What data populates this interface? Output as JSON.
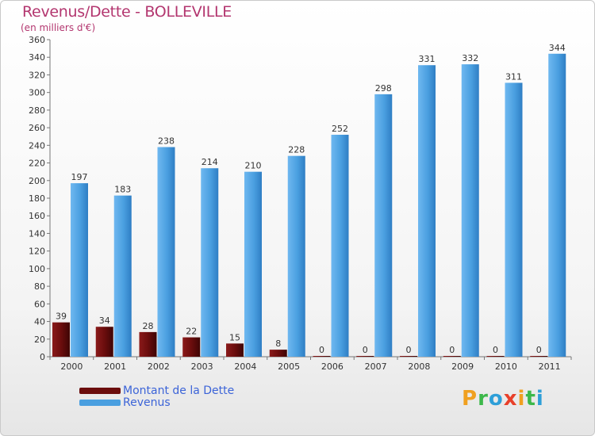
{
  "chart_data": {
    "type": "bar",
    "title": "Revenus/Dette - BOLLEVILLE",
    "subtitle": "(en milliers d'€)",
    "categories": [
      "2000",
      "2001",
      "2002",
      "2003",
      "2004",
      "2005",
      "2006",
      "2007",
      "2008",
      "2009",
      "2010",
      "2011"
    ],
    "series": [
      {
        "name": "Montant de la Dette",
        "color": "#6b0d0d",
        "values": [
          39,
          34,
          28,
          22,
          15,
          8,
          0,
          0,
          0,
          0,
          0,
          0
        ]
      },
      {
        "name": "Revenus",
        "color": "#4a9fe0",
        "values": [
          197,
          183,
          238,
          214,
          210,
          228,
          252,
          298,
          331,
          332,
          311,
          344
        ]
      }
    ],
    "ylim": [
      0,
      360
    ],
    "yticks": [
      0,
      20,
      40,
      60,
      80,
      100,
      120,
      140,
      160,
      180,
      200,
      220,
      240,
      260,
      280,
      300,
      320,
      340,
      360
    ],
    "grid": false,
    "legend": "bottom-left"
  },
  "logo": {
    "letters": [
      "P",
      "r",
      "o",
      "x",
      "i",
      "t",
      "i"
    ],
    "colors": [
      "#f0a020",
      "#3cb84a",
      "#2e9fd8",
      "#e8402a",
      "#f0a020",
      "#3cb84a",
      "#2e9fd8"
    ]
  }
}
